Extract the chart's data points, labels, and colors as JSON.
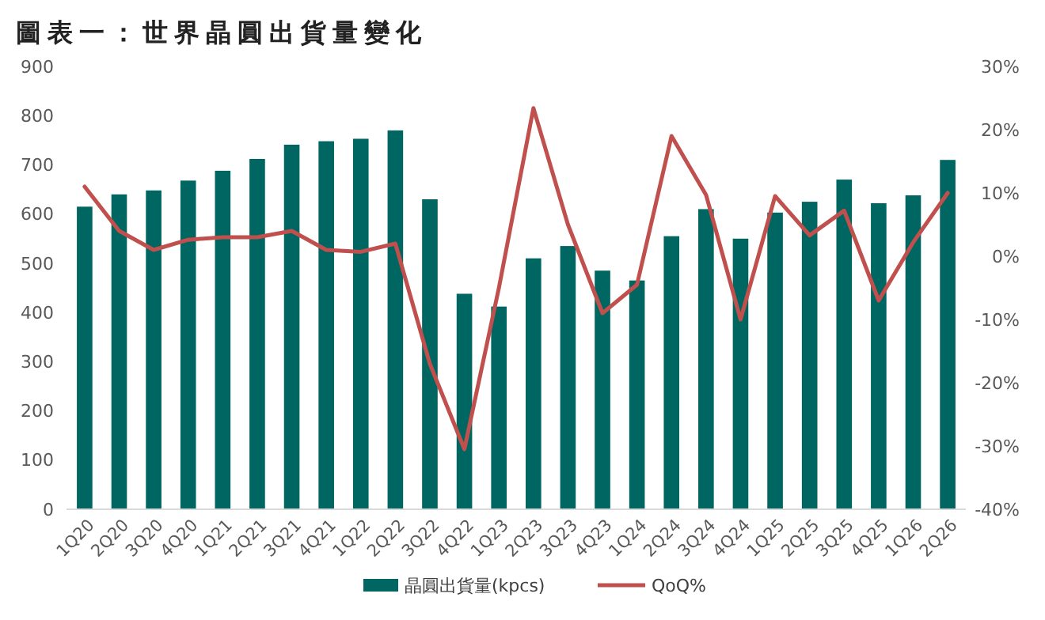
{
  "chart_data": {
    "type": "bar",
    "title": "圖表一：世界晶圓出貨量變化",
    "categories": [
      "1Q20",
      "2Q20",
      "3Q20",
      "4Q20",
      "1Q21",
      "2Q21",
      "3Q21",
      "4Q21",
      "1Q22",
      "2Q22",
      "3Q22",
      "4Q22",
      "1Q23",
      "2Q23",
      "3Q23",
      "4Q23",
      "1Q24",
      "2Q24",
      "3Q24",
      "4Q24",
      "1Q25",
      "2Q25",
      "3Q25",
      "4Q25",
      "1Q26",
      "2Q26"
    ],
    "series": [
      {
        "name": "晶圓出貨量(kpcs)",
        "color": "#006661",
        "values": [
          615,
          640,
          648,
          668,
          688,
          712,
          741,
          748,
          753,
          770,
          630,
          438,
          412,
          510,
          535,
          485,
          465,
          555,
          610,
          550,
          603,
          625,
          670,
          622,
          638,
          710
        ]
      },
      {
        "name": "QoQ%",
        "type": "line",
        "axis": "y2",
        "color": "#c0504d",
        "values": [
          11,
          4,
          1,
          2.6,
          3,
          3,
          4,
          1,
          0.7,
          2,
          -17,
          -30.5,
          -5,
          23.4,
          5,
          -9,
          -4.5,
          19,
          9.7,
          -10,
          9.5,
          3.3,
          7.2,
          -7,
          2.2,
          10
        ]
      }
    ],
    "ylim": [
      0,
      900
    ],
    "yticks": [
      0,
      100,
      200,
      300,
      400,
      500,
      600,
      700,
      800,
      900
    ],
    "y2lim": [
      -40,
      30
    ],
    "y2ticks": [
      {
        "value": -40,
        "label": "-40%"
      },
      {
        "value": -30,
        "label": "-30%"
      },
      {
        "value": -20,
        "label": "-20%"
      },
      {
        "value": -10,
        "label": "-10%"
      },
      {
        "value": 0,
        "label": "0%"
      },
      {
        "value": 10,
        "label": "10%"
      },
      {
        "value": 20,
        "label": "20%"
      },
      {
        "value": 30,
        "label": "30%"
      }
    ],
    "legend": "bottom",
    "grid": false,
    "marker": "none"
  }
}
